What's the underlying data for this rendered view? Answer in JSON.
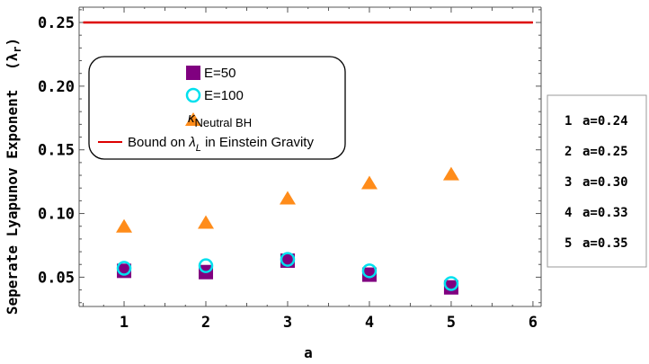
{
  "chart_data": {
    "type": "scatter",
    "xlabel": "a",
    "ylabel": "Seperate Lyapunov Exponent",
    "ylabel_symbol": "(λ",
    "ylabel_symbol_sub": "r",
    "ylabel_symbol_close": ")",
    "xlim": [
      0.45,
      6.1
    ],
    "ylim": [
      0.027,
      0.262
    ],
    "x_ticks": [
      1,
      2,
      3,
      4,
      5,
      6
    ],
    "y_ticks": [
      0.05,
      0.1,
      0.15,
      0.2,
      0.25
    ],
    "y_tick_labels": [
      "0.05",
      "0.10",
      "0.15",
      "0.20",
      "0.25"
    ],
    "grid": false,
    "legend_placement": "upper-left",
    "series": [
      {
        "name": "E=50",
        "marker": "square",
        "color": "#800080",
        "x": [
          1,
          2,
          3,
          4,
          5
        ],
        "y": [
          0.055,
          0.054,
          0.063,
          0.052,
          0.042
        ]
      },
      {
        "name": "E=100",
        "marker": "open-circle",
        "color": "#00e0ee",
        "x": [
          1,
          2,
          3,
          4,
          5
        ],
        "y": [
          0.057,
          0.059,
          0.064,
          0.055,
          0.045
        ]
      },
      {
        "name": "κ",
        "name_subscript": "Neutral BH",
        "marker": "triangle",
        "color": "#ff8c1a",
        "x": [
          1,
          2,
          3,
          4,
          5
        ],
        "y": [
          0.09,
          0.093,
          0.112,
          0.124,
          0.131
        ]
      }
    ],
    "bound_line": {
      "label_prefix": "Bound on ",
      "label_symbol": "λ",
      "label_subscript": "L",
      "label_suffix": " in Einstein Gravity",
      "y": 0.25,
      "color": "#dd0000"
    },
    "side_legend": [
      {
        "index": "1",
        "label": "a=0.24"
      },
      {
        "index": "2",
        "label": "a=0.25"
      },
      {
        "index": "3",
        "label": "a=0.30"
      },
      {
        "index": "4",
        "label": "a=0.33"
      },
      {
        "index": "5",
        "label": "a=0.35"
      }
    ]
  }
}
